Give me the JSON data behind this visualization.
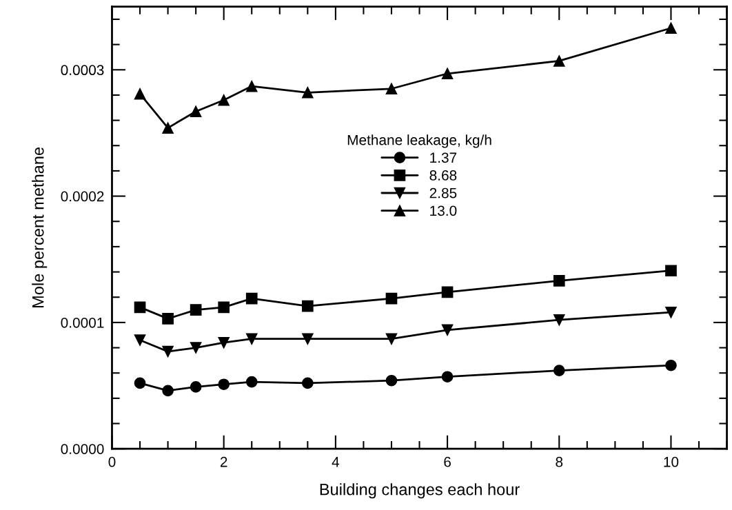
{
  "chart_data": {
    "type": "line",
    "xlabel": "Building changes each hour",
    "ylabel": "Mole percent methane",
    "legend_title": "Methane leakage, kg/h",
    "x": [
      0.5,
      1,
      1.5,
      2,
      2.5,
      3.5,
      5,
      6,
      8,
      10
    ],
    "series": [
      {
        "name": "1.37",
        "color": "#000000",
        "marker": "circle",
        "values": [
          5.2e-05,
          4.6e-05,
          4.9e-05,
          5.1e-05,
          5.3e-05,
          5.2e-05,
          5.4e-05,
          5.7e-05,
          6.2e-05,
          6.6e-05
        ]
      },
      {
        "name": "8.68",
        "color": "#000000",
        "marker": "square",
        "values": [
          0.000112,
          0.000103,
          0.00011,
          0.000112,
          0.000119,
          0.000113,
          0.000119,
          0.000124,
          0.000133,
          0.000141
        ]
      },
      {
        "name": "2.85",
        "color": "#000000",
        "marker": "triangle_down",
        "values": [
          8.6e-05,
          7.7e-05,
          8e-05,
          8.4e-05,
          8.7e-05,
          8.7e-05,
          8.7e-05,
          9.4e-05,
          0.000102,
          0.000108
        ]
      },
      {
        "name": "13.0",
        "color": "#000000",
        "marker": "triangle",
        "values": [
          0.000281,
          0.000254,
          0.000267,
          0.000276,
          0.000287,
          0.000282,
          0.000285,
          0.000297,
          0.000307,
          0.000333
        ]
      }
    ],
    "xlim": [
      0,
      11
    ],
    "xticks": [
      0,
      2,
      4,
      6,
      8,
      10
    ],
    "ylim": [
      0,
      0.00035
    ],
    "yticks": [
      {
        "value": 0,
        "label": "0.0000"
      },
      {
        "value": 0.0001,
        "label": "0.0001"
      },
      {
        "value": 0.0002,
        "label": "0.0002"
      },
      {
        "value": 0.0003,
        "label": "0.0003"
      }
    ],
    "grid": false,
    "legend": "top",
    "line_style": "solid"
  }
}
